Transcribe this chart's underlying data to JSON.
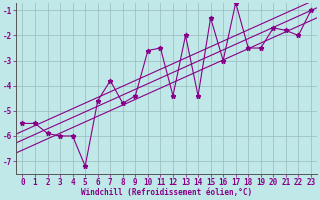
{
  "xlabel": "Windchill (Refroidissement éolien,°C)",
  "bg_color": "#c0e8e8",
  "line_color": "#880088",
  "grid_color": "#99bbbb",
  "x_data": [
    0,
    1,
    2,
    3,
    4,
    5,
    6,
    7,
    8,
    9,
    10,
    11,
    12,
    13,
    14,
    15,
    16,
    17,
    18,
    19,
    20,
    21,
    22,
    23
  ],
  "y_data": [
    -5.5,
    -5.5,
    -5.9,
    -6.0,
    -6.0,
    -7.2,
    -4.6,
    -3.8,
    -4.7,
    -4.4,
    -2.6,
    -2.5,
    -4.4,
    -2.0,
    -4.4,
    -1.3,
    -3.0,
    -0.7,
    -2.5,
    -2.5,
    -1.7,
    -1.8,
    -2.0,
    -1.0
  ],
  "ylim": [
    -7.5,
    -0.7
  ],
  "xlim": [
    -0.5,
    23.5
  ],
  "yticks": [
    -7,
    -6,
    -5,
    -4,
    -3,
    -2,
    -1
  ],
  "xticks": [
    0,
    1,
    2,
    3,
    4,
    5,
    6,
    7,
    8,
    9,
    10,
    11,
    12,
    13,
    14,
    15,
    16,
    17,
    18,
    19,
    20,
    21,
    22,
    23
  ],
  "reg_offsets": [
    -0.4,
    0.0,
    0.35
  ],
  "marker_size": 3.5,
  "line_width": 0.8,
  "tick_fontsize": 5.5,
  "label_fontsize": 5.5
}
